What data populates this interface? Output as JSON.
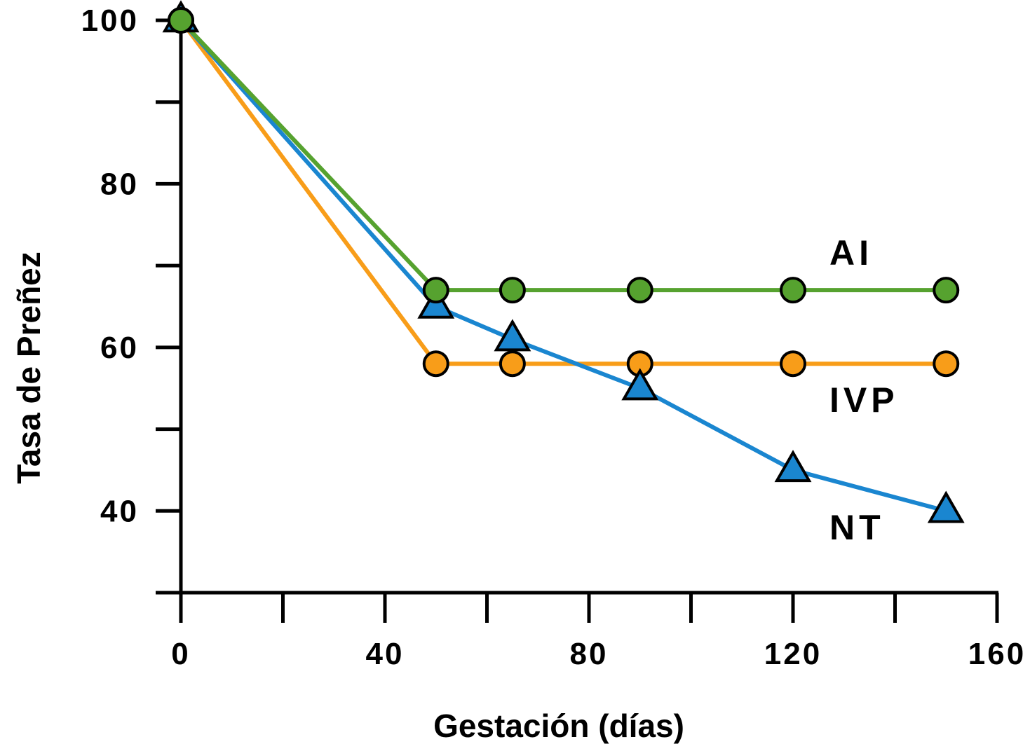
{
  "chart_data": {
    "type": "line",
    "xlabel": "Gestación (días)",
    "ylabel": "Tasa de Preñez",
    "xlim": [
      0,
      160
    ],
    "ylim": [
      30,
      100
    ],
    "x_ticks": [
      0,
      20,
      40,
      60,
      80,
      100,
      120,
      140,
      160
    ],
    "x_tick_labels": [
      "0",
      "40",
      "80",
      "120",
      "160"
    ],
    "y_ticks": [
      30,
      40,
      50,
      60,
      70,
      80,
      90,
      100
    ],
    "y_tick_labels": [
      "40",
      "60",
      "80",
      "100"
    ],
    "grid": false,
    "legend": "inline labels at right end of lines",
    "series": [
      {
        "name": "AI",
        "color": "#56a22f",
        "marker": "circle",
        "x": [
          0,
          50,
          65,
          90,
          120,
          150
        ],
        "values": [
          100,
          67,
          67,
          67,
          67,
          67
        ]
      },
      {
        "name": "IVP",
        "color": "#f89d19",
        "marker": "circle",
        "x": [
          0,
          50,
          65,
          90,
          120,
          150
        ],
        "values": [
          100,
          58,
          58,
          58,
          58,
          58
        ]
      },
      {
        "name": "NT",
        "color": "#1a86d0",
        "marker": "triangle",
        "x": [
          0,
          50,
          65,
          90,
          120,
          150
        ],
        "values": [
          100,
          65,
          61,
          55,
          45,
          40
        ]
      }
    ]
  }
}
